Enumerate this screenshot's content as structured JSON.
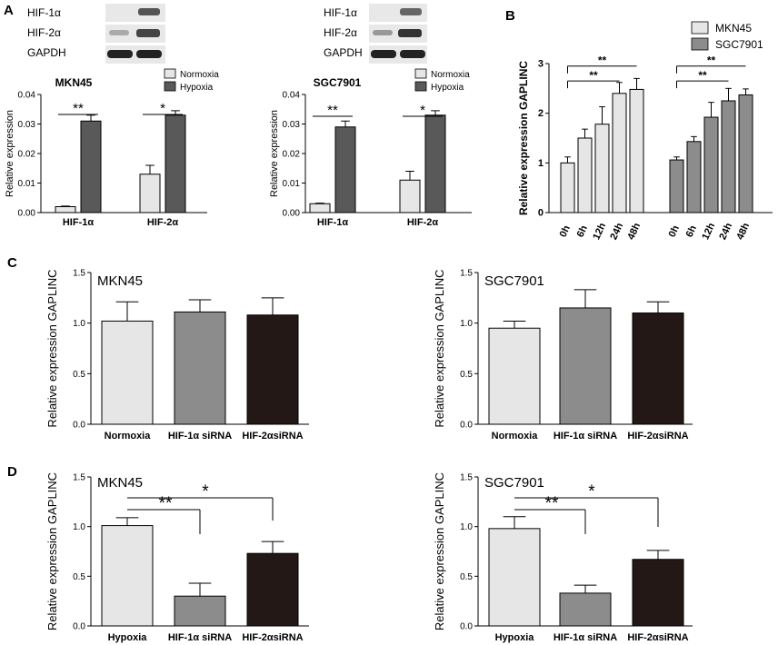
{
  "panels": [
    "A",
    "B",
    "C",
    "D"
  ],
  "blots": [
    {
      "lanes": [
        "HIF-1α",
        "HIF-2α",
        "GAPDH"
      ]
    },
    {
      "lanes": [
        "HIF-1α",
        "HIF-2α",
        "GAPDH"
      ]
    }
  ],
  "colors": {
    "light": "#e6e6e6",
    "mid": "#8c8c8c",
    "dark": "#595959",
    "black": "#231815"
  },
  "chart_data": [
    {
      "id": "A1",
      "type": "bar",
      "title": "MKN45",
      "ylabel": "Relative expression",
      "ylim": [
        0,
        0.04
      ],
      "yticks": [
        "0.00",
        "0.01",
        "0.02",
        "0.03",
        "0.04"
      ],
      "ytick_values": [
        0,
        0.01,
        0.02,
        0.03,
        0.04
      ],
      "categories": [
        "HIF-1α",
        "HIF-2α"
      ],
      "series": [
        {
          "name": "Normoxia",
          "values": [
            0.002,
            0.013
          ],
          "errors": [
            0.0002,
            0.003
          ]
        },
        {
          "name": "Hypoxia",
          "values": [
            0.031,
            0.033
          ],
          "errors": [
            0.002,
            0.0015
          ]
        }
      ],
      "legend": [
        "Normoxia",
        "Hypoxia"
      ],
      "significance": [
        "**",
        "*"
      ]
    },
    {
      "id": "A2",
      "type": "bar",
      "title": "SGC7901",
      "ylabel": "Relative expression",
      "ylim": [
        0,
        0.04
      ],
      "yticks": [
        "0.00",
        "0.01",
        "0.02",
        "0.03",
        "0.04"
      ],
      "ytick_values": [
        0,
        0.01,
        0.02,
        0.03,
        0.04
      ],
      "categories": [
        "HIF-1α",
        "HIF-2α"
      ],
      "series": [
        {
          "name": "Normoxia",
          "values": [
            0.003,
            0.011
          ],
          "errors": [
            0.0002,
            0.003
          ]
        },
        {
          "name": "Hypoxia",
          "values": [
            0.029,
            0.033
          ],
          "errors": [
            0.002,
            0.0015
          ]
        }
      ],
      "legend": [
        "Normoxia",
        "Hypoxia"
      ],
      "significance": [
        "**",
        "*"
      ]
    },
    {
      "id": "B",
      "type": "bar",
      "ylabel": "Relative expression GAPLINC",
      "ylim": [
        0,
        3
      ],
      "yticks": [
        "0",
        "1",
        "2",
        "3"
      ],
      "ytick_values": [
        0,
        1,
        2,
        3
      ],
      "categories": [
        "0h",
        "6h",
        "12h",
        "24h",
        "48h"
      ],
      "series": [
        {
          "name": "MKN45",
          "values": [
            1.0,
            1.5,
            1.78,
            2.4,
            2.48
          ],
          "errors": [
            0.12,
            0.18,
            0.35,
            0.22,
            0.22
          ]
        },
        {
          "name": "SGC7901",
          "values": [
            1.06,
            1.43,
            1.92,
            2.25,
            2.37
          ],
          "errors": [
            0.06,
            0.1,
            0.3,
            0.25,
            0.12
          ]
        }
      ],
      "legend": [
        "MKN45",
        "SGC7901"
      ],
      "significance": [
        "**",
        "**",
        "**",
        "**"
      ]
    },
    {
      "id": "C1",
      "type": "bar",
      "title": "MKN45",
      "ylabel": "Relative expression GAPLINC",
      "ylim": [
        0,
        1.5
      ],
      "yticks": [
        "0.0",
        "0.5",
        "1.0",
        "1.5"
      ],
      "ytick_values": [
        0,
        0.5,
        1.0,
        1.5
      ],
      "categories": [
        "Normoxia",
        "HIF-1α siRNA",
        "HIF-2αsiRNA"
      ],
      "values": [
        1.02,
        1.11,
        1.08
      ],
      "errors": [
        0.19,
        0.12,
        0.17
      ]
    },
    {
      "id": "C2",
      "type": "bar",
      "title": "SGC7901",
      "ylabel": "Relative expression GAPLINC",
      "ylim": [
        0,
        1.5
      ],
      "yticks": [
        "0.0",
        "0.5",
        "1.0",
        "1.5"
      ],
      "ytick_values": [
        0,
        0.5,
        1.0,
        1.5
      ],
      "categories": [
        "Normoxia",
        "HIF-1α siRNA",
        "HIF-2αsiRNA"
      ],
      "values": [
        0.95,
        1.15,
        1.1
      ],
      "errors": [
        0.07,
        0.18,
        0.11
      ]
    },
    {
      "id": "D1",
      "type": "bar",
      "title": "MKN45",
      "ylabel": "Relative expression GAPLINC",
      "ylim": [
        0,
        1.5
      ],
      "yticks": [
        "0.0",
        "0.5",
        "1.0",
        "1.5"
      ],
      "ytick_values": [
        0,
        0.5,
        1.0,
        1.5
      ],
      "categories": [
        "Hypoxia",
        "HIF-1α siRNA",
        "HIF-2αsiRNA"
      ],
      "values": [
        1.01,
        0.3,
        0.73
      ],
      "errors": [
        0.08,
        0.13,
        0.12
      ],
      "significance": [
        "**",
        "*"
      ]
    },
    {
      "id": "D2",
      "type": "bar",
      "title": "SGC7901",
      "ylabel": "Relative expression GAPLINC",
      "ylim": [
        0,
        1.5
      ],
      "yticks": [
        "0.0",
        "0.5",
        "1.0",
        "1.5"
      ],
      "ytick_values": [
        0,
        0.5,
        1.0,
        1.5
      ],
      "categories": [
        "Hypoxia",
        "HIF-1α siRNA",
        "HIF-2αsiRNA"
      ],
      "values": [
        0.98,
        0.33,
        0.67
      ],
      "errors": [
        0.12,
        0.08,
        0.09
      ],
      "significance": [
        "**",
        "*"
      ]
    }
  ]
}
